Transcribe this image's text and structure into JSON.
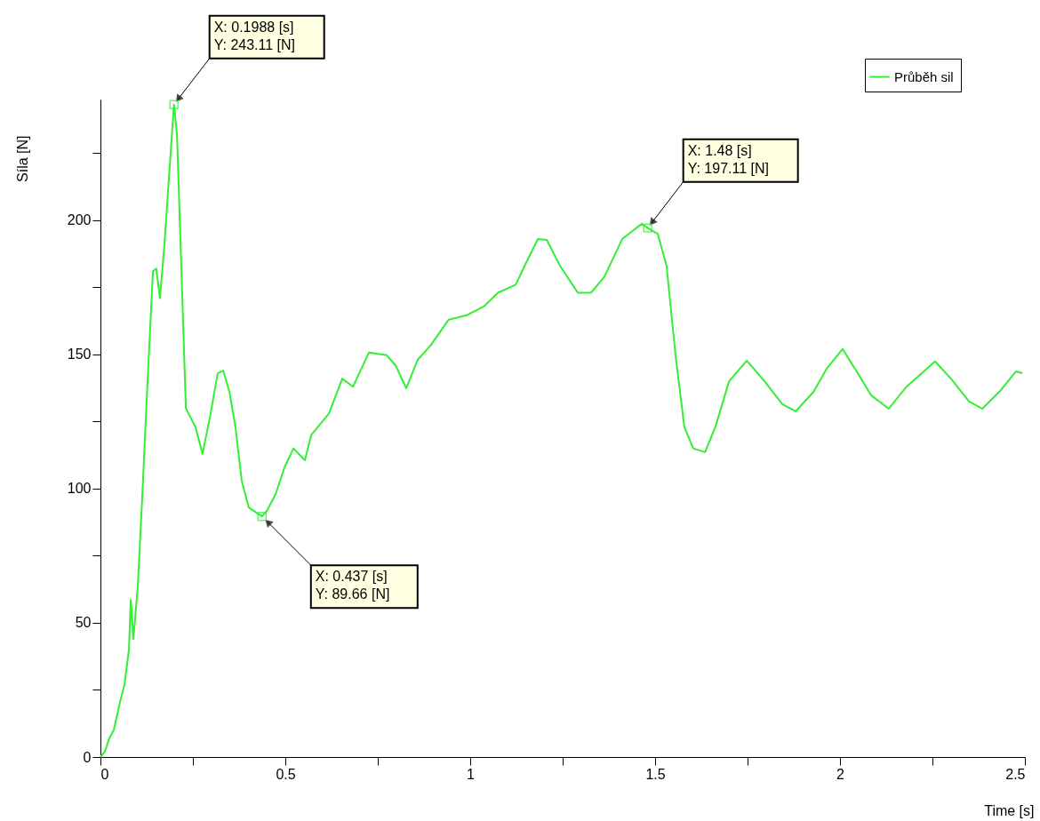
{
  "chart_data": {
    "type": "line",
    "xlabel": "Time [s]",
    "ylabel": "Síla [N]",
    "x": [
      0,
      0.012,
      0.024,
      0.036,
      0.053,
      0.065,
      0.077,
      0.082,
      0.089,
      0.101,
      0.113,
      0.125,
      0.142,
      0.151,
      0.161,
      0.173,
      0.1988,
      0.207,
      0.221,
      0.231,
      0.24,
      0.257,
      0.276,
      0.296,
      0.317,
      0.332,
      0.349,
      0.365,
      0.382,
      0.401,
      0.437,
      0.45,
      0.474,
      0.498,
      0.522,
      0.553,
      0.57,
      0.618,
      0.654,
      0.683,
      0.726,
      0.774,
      0.798,
      0.827,
      0.858,
      0.894,
      0.942,
      0.99,
      1.038,
      1.075,
      1.123,
      1.147,
      1.183,
      1.207,
      1.243,
      1.291,
      1.327,
      1.363,
      1.411,
      1.464,
      1.48,
      1.507,
      1.531,
      1.555,
      1.579,
      1.603,
      1.635,
      1.663,
      1.7,
      1.748,
      1.796,
      1.844,
      1.88,
      1.928,
      1.964,
      2.007,
      2.048,
      2.084,
      2.132,
      2.18,
      2.257,
      2.3,
      2.349,
      2.385,
      2.433,
      2.476,
      2.493
    ],
    "series": [
      {
        "name": "Průběh sil",
        "color": "#33ee33",
        "values": [
          0,
          2,
          7,
          10,
          20.5,
          27,
          40,
          58.6,
          44,
          63.6,
          96.7,
          133,
          181,
          182,
          171,
          191,
          243.11,
          232,
          173,
          130,
          127.5,
          123,
          113,
          126.5,
          143,
          144,
          136,
          123,
          103,
          93,
          89.66,
          91.7,
          98,
          108,
          115,
          110.6,
          120,
          128,
          141,
          138,
          150.7,
          149.7,
          146,
          137.4,
          148,
          153.6,
          163,
          164.6,
          168,
          173,
          176,
          183,
          193,
          192.7,
          183,
          173,
          173,
          179,
          193,
          198.7,
          197.11,
          195,
          183,
          150,
          123,
          115,
          113.6,
          123,
          140,
          147.7,
          140,
          131.5,
          128.8,
          136,
          144.7,
          152,
          143,
          134.8,
          129.8,
          138,
          147.4,
          141,
          132.5,
          129.8,
          136.4,
          143.7,
          143
        ]
      }
    ],
    "xlim": [
      0,
      2.5
    ],
    "xticks": [
      0,
      {
        "value": 0.25,
        "label": null
      },
      0.5,
      {
        "value": 0.75,
        "label": null
      },
      1,
      {
        "value": 1.25,
        "label": null
      },
      1.5,
      {
        "value": 1.75,
        "label": null
      },
      2,
      {
        "value": 2.25,
        "label": null
      },
      2.5
    ],
    "ylim": [
      0,
      245
    ],
    "yticks": [
      0,
      {
        "value": 25,
        "label": null
      },
      50,
      {
        "value": 75,
        "label": null
      },
      100,
      {
        "value": 125,
        "label": null
      },
      150,
      {
        "value": 175,
        "label": null
      },
      200,
      {
        "value": 225,
        "label": null
      }
    ],
    "annotations": [
      {
        "text": "X: 0.1988 [s]\nY: 243.11 [N]",
        "x": 0.1988,
        "y": 243.11
      },
      {
        "text": "X: 0.437 [s]\nY: 89.66 [N]",
        "x": 0.437,
        "y": 89.66
      },
      {
        "text": "X: 1.48 [s]\nY: 197.11 [N]",
        "x": 1.48,
        "y": 197.11
      }
    ],
    "legend": "top right",
    "grid": false,
    "marker": "none",
    "line_style": "solid"
  }
}
